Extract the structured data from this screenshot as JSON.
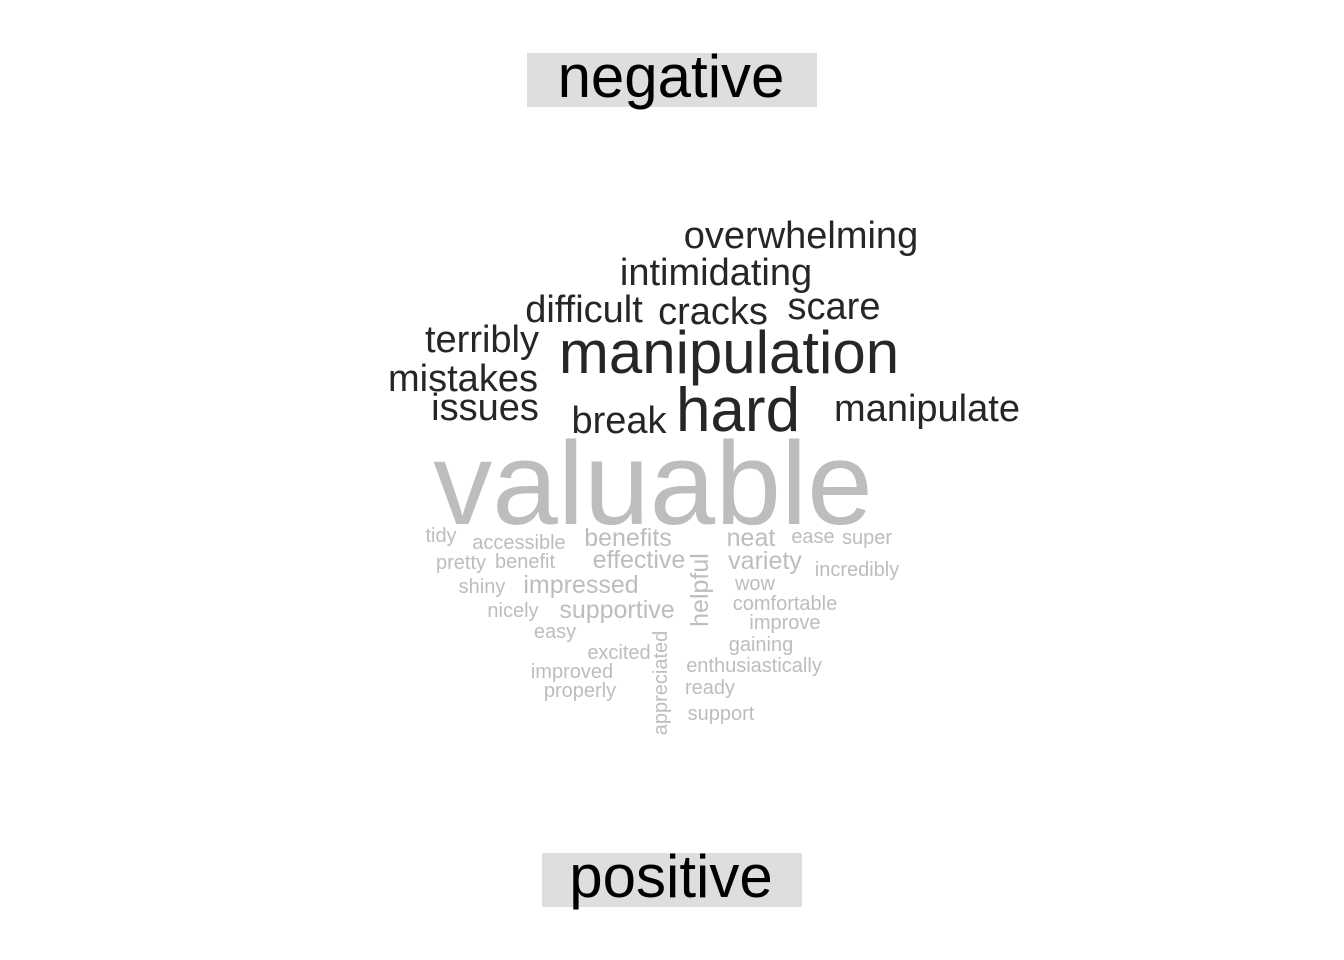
{
  "chart_data": {
    "type": "wordcloud",
    "groups": [
      {
        "label": "negative",
        "color": "#262626",
        "label_bg": "#dedede",
        "words": [
          {
            "text": "overwhelming"
          },
          {
            "text": "intimidating"
          },
          {
            "text": "difficult"
          },
          {
            "text": "cracks"
          },
          {
            "text": "scare"
          },
          {
            "text": "terribly"
          },
          {
            "text": "manipulation"
          },
          {
            "text": "mistakes"
          },
          {
            "text": "issues"
          },
          {
            "text": "break"
          },
          {
            "text": "hard"
          },
          {
            "text": "manipulate"
          }
        ]
      },
      {
        "label": "positive",
        "color": "#bdbdbd",
        "label_bg": "#dedede",
        "words": [
          {
            "text": "valuable"
          },
          {
            "text": "tidy"
          },
          {
            "text": "accessible"
          },
          {
            "text": "benefits"
          },
          {
            "text": "neat"
          },
          {
            "text": "ease"
          },
          {
            "text": "super"
          },
          {
            "text": "pretty"
          },
          {
            "text": "benefit"
          },
          {
            "text": "effective"
          },
          {
            "text": "helpful"
          },
          {
            "text": "variety"
          },
          {
            "text": "incredibly"
          },
          {
            "text": "shiny"
          },
          {
            "text": "impressed"
          },
          {
            "text": "wow"
          },
          {
            "text": "comfortable"
          },
          {
            "text": "nicely"
          },
          {
            "text": "supportive"
          },
          {
            "text": "improve"
          },
          {
            "text": "easy"
          },
          {
            "text": "gaining"
          },
          {
            "text": "excited"
          },
          {
            "text": "enthusiastically"
          },
          {
            "text": "improved"
          },
          {
            "text": "ready"
          },
          {
            "text": "properly"
          },
          {
            "text": "appreciated"
          },
          {
            "text": "support"
          }
        ]
      }
    ]
  }
}
